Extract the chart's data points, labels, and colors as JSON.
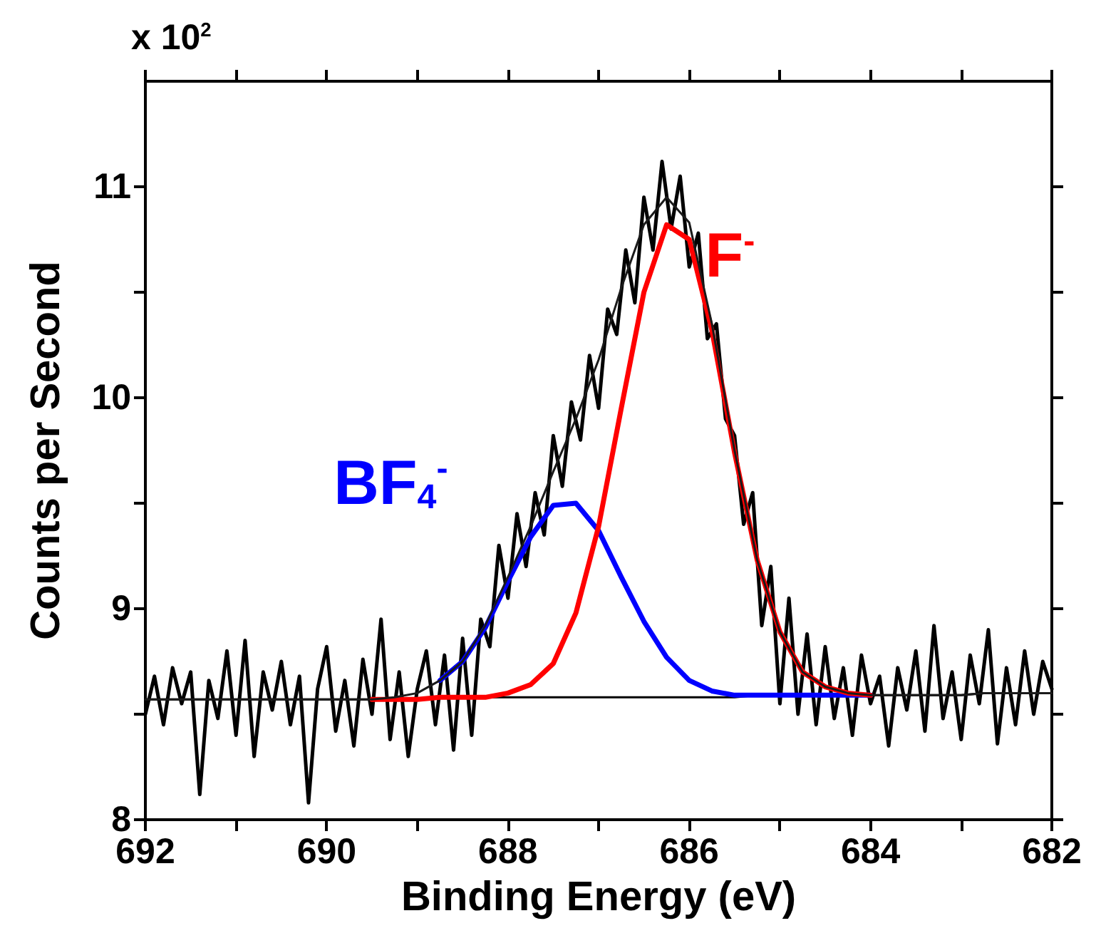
{
  "chart_data": {
    "type": "line",
    "xlabel": "Binding Energy (eV)",
    "ylabel": "Counts per Second",
    "annotations": [
      "x 10$^{2}$"
    ],
    "xlim": [
      692,
      682
    ],
    "ylim": [
      8,
      11.5
    ],
    "xticks": [
      692,
      {
        "value": 691,
        "label": null
      },
      690,
      {
        "value": 689,
        "label": null
      },
      688,
      {
        "value": 687,
        "label": null
      },
      686,
      {
        "value": 685,
        "label": null
      },
      684,
      {
        "value": 683,
        "label": null
      },
      682
    ],
    "yticks": [
      8,
      {
        "value": 8.5,
        "label": null
      },
      9,
      {
        "value": 9.5,
        "label": null
      },
      10,
      {
        "value": 10.5,
        "label": null
      },
      11
    ],
    "x": [
      692,
      691.75,
      691.5,
      691.25,
      691,
      690.75,
      690.5,
      690.25,
      690,
      689.75,
      689.5,
      689.25,
      689,
      688.75,
      688.5,
      688.25,
      688,
      687.75,
      687.5,
      687.25,
      687,
      686.75,
      686.5,
      686.25,
      686,
      685.75,
      685.5,
      685.25,
      685,
      684.75,
      684.5,
      684.25,
      684,
      683.75,
      683.5,
      683.25,
      683,
      682.75,
      682.5,
      682.25,
      682
    ],
    "marker": "none",
    "line_style": "solid",
    "grid": false,
    "series": [
      {
        "color": "#000000",
        "x": [
          692,
          691.9,
          691.8,
          691.7,
          691.6,
          691.5,
          691.4,
          691.3,
          691.2,
          691.1,
          691,
          690.9,
          690.8,
          690.7,
          690.6,
          690.5,
          690.4,
          690.3,
          690.2,
          690.1,
          690,
          689.9,
          689.8,
          689.7,
          689.6,
          689.5,
          689.4,
          689.3,
          689.2,
          689.1,
          689,
          688.9,
          688.8,
          688.7,
          688.6,
          688.5,
          688.4,
          688.3,
          688.2,
          688.1,
          688,
          687.9,
          687.8,
          687.7,
          687.6,
          687.5,
          687.4,
          687.3,
          687.2,
          687.1,
          687,
          686.9,
          686.8,
          686.7,
          686.6,
          686.5,
          686.4,
          686.3,
          686.2,
          686.1,
          686,
          685.9,
          685.8,
          685.7,
          685.6,
          685.5,
          685.4,
          685.3,
          685.2,
          685.1,
          685,
          684.9,
          684.8,
          684.7,
          684.6,
          684.5,
          684.4,
          684.3,
          684.2,
          684.1,
          684,
          683.9,
          683.8,
          683.7,
          683.6,
          683.5,
          683.4,
          683.3,
          683.2,
          683.1,
          683,
          682.9,
          682.8,
          682.7,
          682.6,
          682.5,
          682.4,
          682.3,
          682.2,
          682.1,
          682
        ],
        "values": [
          8.5,
          8.68,
          8.45,
          8.72,
          8.55,
          8.7,
          8.12,
          8.66,
          8.48,
          8.8,
          8.4,
          8.85,
          8.3,
          8.7,
          8.52,
          8.75,
          8.45,
          8.68,
          8.08,
          8.62,
          8.82,
          8.42,
          8.66,
          8.35,
          8.76,
          8.5,
          8.95,
          8.38,
          8.7,
          8.3,
          8.62,
          8.8,
          8.45,
          8.78,
          8.33,
          8.86,
          8.4,
          8.95,
          8.82,
          9.3,
          9.05,
          9.45,
          9.2,
          9.55,
          9.35,
          9.82,
          9.58,
          9.98,
          9.8,
          10.2,
          9.95,
          10.42,
          10.3,
          10.7,
          10.45,
          10.95,
          10.7,
          11.12,
          10.8,
          11.05,
          10.62,
          10.78,
          10.28,
          10.35,
          9.9,
          9.82,
          9.4,
          9.55,
          8.92,
          9.2,
          8.55,
          9.05,
          8.5,
          8.88,
          8.45,
          8.82,
          8.48,
          8.72,
          8.4,
          8.78,
          8.55,
          8.68,
          8.35,
          8.72,
          8.52,
          8.8,
          8.42,
          8.92,
          8.48,
          8.7,
          8.38,
          8.78,
          8.55,
          8.9,
          8.36,
          8.72,
          8.45,
          8.8,
          8.5,
          8.75,
          8.62
        ]
      },
      {
        "color": "#000000",
        "values": [
          8.57,
          8.57,
          8.57,
          8.57,
          8.57,
          8.57,
          8.57,
          8.57,
          8.57,
          8.57,
          8.57,
          8.57,
          8.57,
          8.58,
          8.58,
          8.58,
          8.58,
          8.58,
          8.58,
          8.58,
          8.58,
          8.58,
          8.58,
          8.58,
          8.58,
          8.58,
          8.58,
          8.59,
          8.59,
          8.59,
          8.59,
          8.59,
          8.59,
          8.59,
          8.59,
          8.59,
          8.59,
          8.6,
          8.6,
          8.6,
          8.6
        ]
      },
      {
        "name": "BF$_{4}$$^{-}$",
        "color": "#0000ff",
        "values": [
          null,
          null,
          null,
          null,
          null,
          null,
          null,
          null,
          null,
          null,
          null,
          null,
          null,
          8.66,
          8.75,
          8.91,
          9.13,
          9.34,
          9.49,
          9.5,
          9.37,
          9.15,
          8.94,
          8.77,
          8.66,
          8.61,
          8.59,
          8.59,
          8.59,
          8.59,
          8.59,
          8.59,
          8.59,
          null,
          null,
          null,
          null,
          null,
          null,
          null,
          null
        ]
      },
      {
        "name": "F$^{-}$",
        "color": "#ff0000",
        "values": [
          null,
          null,
          null,
          null,
          null,
          null,
          null,
          null,
          null,
          null,
          8.57,
          8.57,
          8.57,
          8.58,
          8.58,
          8.58,
          8.6,
          8.64,
          8.74,
          8.98,
          9.39,
          9.95,
          10.5,
          10.82,
          10.75,
          10.32,
          9.74,
          9.23,
          8.89,
          8.7,
          8.63,
          8.6,
          8.59,
          null,
          null,
          null,
          null,
          null,
          null,
          null,
          null
        ]
      },
      {
        "color": "#1a1a1a",
        "values": [
          8.57,
          8.57,
          8.57,
          8.57,
          8.57,
          8.57,
          8.57,
          8.57,
          8.57,
          8.57,
          8.57,
          8.58,
          8.6,
          8.66,
          8.75,
          8.92,
          9.15,
          9.39,
          9.65,
          9.9,
          10.18,
          10.52,
          10.82,
          10.95,
          10.83,
          10.35,
          9.75,
          9.23,
          8.89,
          8.7,
          8.63,
          8.6,
          8.59,
          8.59,
          8.59,
          8.59,
          8.59,
          8.6,
          8.6,
          8.6,
          8.6
        ]
      }
    ]
  }
}
